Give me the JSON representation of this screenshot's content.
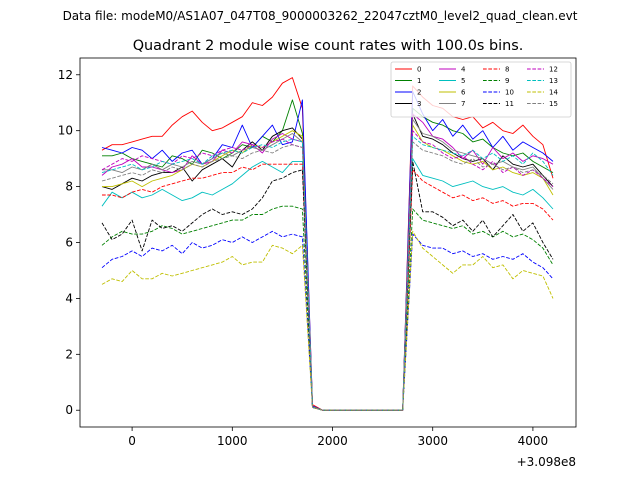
{
  "figure": {
    "suptitle": "Data file: modeM0/AS1A07_047T08_9000003262_22047cztM0_level2_quad_clean.evt"
  },
  "chart_data": {
    "type": "line",
    "title": "Quadrant 2 module wise count rates with 100.0s bins.",
    "xlabel": "",
    "ylabel": "",
    "x_offset_label": "+3.098e8",
    "xlim": [
      -520,
      4430
    ],
    "ylim": [
      -0.6,
      12.6
    ],
    "xticks": [
      0,
      1000,
      2000,
      3000,
      4000
    ],
    "yticks": [
      0,
      2,
      4,
      6,
      8,
      10,
      12
    ],
    "grid": false,
    "legend": {
      "placement": "top-right",
      "columns": 4
    },
    "x": [
      -300,
      -200,
      -100,
      0,
      100,
      200,
      300,
      400,
      500,
      600,
      700,
      800,
      900,
      1000,
      1100,
      1200,
      1300,
      1400,
      1500,
      1600,
      1700,
      1800,
      1900,
      2000,
      2100,
      2200,
      2300,
      2400,
      2500,
      2600,
      2700,
      2800,
      2900,
      3000,
      3100,
      3200,
      3300,
      3400,
      3500,
      3600,
      3700,
      3800,
      3900,
      4000,
      4100,
      4200
    ],
    "series": [
      {
        "name": "0",
        "color": "#ff0000",
        "dash": "solid",
        "values": [
          9.3,
          9.5,
          9.5,
          9.6,
          9.7,
          9.8,
          9.8,
          10.2,
          10.5,
          10.7,
          10.3,
          10.0,
          10.1,
          10.3,
          10.5,
          11.0,
          10.9,
          11.2,
          11.7,
          11.9,
          10.8,
          0.2,
          0.0,
          0.0,
          0.0,
          0.0,
          0.0,
          0.0,
          0.0,
          0.0,
          0.0,
          11.6,
          11.2,
          10.9,
          10.8,
          10.5,
          10.4,
          10.5,
          10.1,
          10.3,
          10.0,
          9.9,
          10.2,
          9.8,
          9.5,
          8.3
        ]
      },
      {
        "name": "1",
        "color": "#008000",
        "dash": "solid",
        "values": [
          9.1,
          9.1,
          9.2,
          9.0,
          8.9,
          8.8,
          8.7,
          9.1,
          9.0,
          8.8,
          9.3,
          9.2,
          9.0,
          9.2,
          9.5,
          9.4,
          9.8,
          9.6,
          10.0,
          11.1,
          9.9,
          0.15,
          0.0,
          0.0,
          0.0,
          0.0,
          0.0,
          0.0,
          0.0,
          0.0,
          0.0,
          10.8,
          10.5,
          10.3,
          10.2,
          10.0,
          9.9,
          9.6,
          9.7,
          9.4,
          9.2,
          9.1,
          9.2,
          8.9,
          8.7,
          8.5
        ]
      },
      {
        "name": "2",
        "color": "#0000ff",
        "dash": "solid",
        "values": [
          9.4,
          9.3,
          9.2,
          9.4,
          9.3,
          9.0,
          9.3,
          8.9,
          9.2,
          9.3,
          8.8,
          9.0,
          9.5,
          9.4,
          10.2,
          9.4,
          9.8,
          10.2,
          9.5,
          9.6,
          11.1,
          0.15,
          0.0,
          0.0,
          0.0,
          0.0,
          0.0,
          0.0,
          0.0,
          0.0,
          0.0,
          11.4,
          10.6,
          10.0,
          10.4,
          9.8,
          10.2,
          9.7,
          10.0,
          9.4,
          9.8,
          9.3,
          9.6,
          9.4,
          9.2,
          8.9
        ]
      },
      {
        "name": "3",
        "color": "#000000",
        "dash": "solid",
        "values": [
          8.0,
          7.9,
          8.1,
          8.3,
          8.2,
          8.4,
          8.5,
          8.5,
          8.7,
          8.2,
          8.6,
          8.8,
          9.0,
          8.7,
          9.3,
          9.6,
          9.3,
          9.8,
          10.0,
          10.1,
          9.7,
          0.12,
          0.0,
          0.0,
          0.0,
          0.0,
          0.0,
          0.0,
          0.0,
          0.0,
          0.0,
          10.6,
          9.8,
          9.7,
          9.5,
          9.2,
          9.0,
          8.9,
          9.0,
          8.6,
          9.1,
          8.8,
          8.7,
          8.8,
          8.4,
          8.0
        ]
      },
      {
        "name": "4",
        "color": "#bf00bf",
        "dash": "solid",
        "values": [
          8.4,
          8.7,
          8.8,
          9.0,
          8.7,
          8.7,
          8.6,
          8.5,
          8.6,
          9.1,
          8.8,
          8.9,
          9.3,
          9.2,
          9.6,
          9.5,
          9.2,
          9.7,
          9.9,
          9.7,
          9.6,
          0.12,
          0.0,
          0.0,
          0.0,
          0.0,
          0.0,
          0.0,
          0.0,
          0.0,
          0.0,
          10.6,
          10.3,
          9.8,
          9.7,
          9.4,
          9.0,
          9.3,
          8.8,
          9.4,
          9.0,
          9.2,
          8.9,
          9.1,
          9.0,
          8.8
        ]
      },
      {
        "name": "5",
        "color": "#00bfbf",
        "dash": "solid",
        "values": [
          7.3,
          7.8,
          7.6,
          7.8,
          7.6,
          7.7,
          7.9,
          7.7,
          7.5,
          7.6,
          7.8,
          7.7,
          7.9,
          8.1,
          8.4,
          8.7,
          8.9,
          8.7,
          8.5,
          8.9,
          8.9,
          0.12,
          0.0,
          0.0,
          0.0,
          0.0,
          0.0,
          0.0,
          0.0,
          0.0,
          0.0,
          9.0,
          8.4,
          8.3,
          8.2,
          8.0,
          8.1,
          8.2,
          8.0,
          7.9,
          8.0,
          7.8,
          7.7,
          7.9,
          7.6,
          7.2
        ]
      },
      {
        "name": "6",
        "color": "#bfbf00",
        "dash": "solid",
        "values": [
          8.0,
          8.0,
          8.1,
          8.2,
          8.0,
          8.2,
          8.3,
          8.4,
          8.6,
          8.8,
          8.7,
          8.9,
          9.1,
          9.3,
          9.2,
          9.5,
          9.4,
          9.6,
          9.8,
          10.0,
          9.8,
          0.12,
          0.0,
          0.0,
          0.0,
          0.0,
          0.0,
          0.0,
          0.0,
          0.0,
          0.0,
          10.2,
          9.6,
          9.4,
          9.3,
          9.1,
          8.9,
          8.8,
          8.9,
          8.6,
          8.7,
          8.5,
          8.4,
          8.5,
          8.3,
          7.7
        ]
      },
      {
        "name": "7",
        "color": "#808080",
        "dash": "solid",
        "values": [
          8.6,
          8.6,
          8.5,
          8.7,
          8.6,
          8.8,
          8.6,
          8.8,
          8.7,
          8.9,
          8.8,
          9.0,
          9.2,
          9.1,
          9.3,
          9.4,
          9.3,
          9.5,
          9.7,
          9.9,
          9.6,
          0.12,
          0.0,
          0.0,
          0.0,
          0.0,
          0.0,
          0.0,
          0.0,
          0.0,
          0.0,
          10.4,
          9.9,
          9.8,
          9.6,
          9.3,
          9.2,
          9.1,
          9.0,
          8.8,
          8.9,
          8.7,
          8.6,
          8.7,
          8.3,
          7.9
        ]
      },
      {
        "name": "8",
        "color": "#ff0000",
        "dash": "dashed",
        "values": [
          7.7,
          7.7,
          7.6,
          7.8,
          7.9,
          7.8,
          8.0,
          8.1,
          8.2,
          8.3,
          8.3,
          8.4,
          8.5,
          8.5,
          8.7,
          8.6,
          8.8,
          8.8,
          8.8,
          8.8,
          8.8,
          0.12,
          0.0,
          0.0,
          0.0,
          0.0,
          0.0,
          0.0,
          0.0,
          0.0,
          0.0,
          8.6,
          8.2,
          8.0,
          7.8,
          7.6,
          7.7,
          7.5,
          7.6,
          7.4,
          7.5,
          7.3,
          7.4,
          7.4,
          7.2,
          6.8
        ]
      },
      {
        "name": "9",
        "color": "#008000",
        "dash": "dashed",
        "values": [
          5.9,
          6.2,
          6.4,
          6.3,
          6.3,
          6.4,
          6.6,
          6.5,
          6.3,
          6.4,
          6.5,
          6.6,
          6.7,
          6.8,
          6.8,
          7.0,
          7.0,
          7.2,
          7.3,
          7.3,
          7.2,
          0.1,
          0.0,
          0.0,
          0.0,
          0.0,
          0.0,
          0.0,
          0.0,
          0.0,
          0.0,
          7.2,
          6.8,
          6.7,
          6.6,
          6.5,
          6.6,
          6.3,
          6.4,
          6.2,
          6.4,
          6.2,
          6.3,
          6.1,
          5.8,
          5.2
        ]
      },
      {
        "name": "10",
        "color": "#0000ff",
        "dash": "dashed",
        "values": [
          5.1,
          5.4,
          5.5,
          5.7,
          5.5,
          5.8,
          5.7,
          5.9,
          5.6,
          6.0,
          5.8,
          5.9,
          6.1,
          6.0,
          6.2,
          6.0,
          6.2,
          6.4,
          6.2,
          6.3,
          6.2,
          0.1,
          0.0,
          0.0,
          0.0,
          0.0,
          0.0,
          0.0,
          0.0,
          0.0,
          0.0,
          6.3,
          5.9,
          5.8,
          5.8,
          5.6,
          5.7,
          5.5,
          5.6,
          5.4,
          5.5,
          5.4,
          5.6,
          5.3,
          5.1,
          4.7
        ]
      },
      {
        "name": "11",
        "color": "#000000",
        "dash": "dashed",
        "values": [
          6.7,
          6.1,
          6.3,
          6.8,
          5.7,
          6.8,
          6.5,
          6.6,
          6.4,
          6.7,
          7.0,
          7.2,
          7.0,
          7.1,
          7.0,
          7.2,
          7.6,
          8.2,
          8.3,
          8.5,
          8.6,
          0.1,
          0.0,
          0.0,
          0.0,
          0.0,
          0.0,
          0.0,
          0.0,
          0.0,
          0.0,
          8.9,
          7.1,
          7.1,
          6.9,
          6.6,
          6.8,
          6.4,
          6.8,
          6.2,
          6.6,
          7.0,
          6.4,
          6.7,
          6.0,
          5.4
        ]
      },
      {
        "name": "12",
        "color": "#bf00bf",
        "dash": "dashed",
        "values": [
          8.6,
          8.8,
          9.0,
          8.9,
          9.1,
          9.0,
          8.9,
          8.8,
          9.1,
          9.0,
          9.2,
          9.1,
          9.3,
          9.4,
          9.3,
          9.5,
          9.4,
          9.6,
          9.7,
          9.5,
          9.4,
          0.12,
          0.0,
          0.0,
          0.0,
          0.0,
          0.0,
          0.0,
          0.0,
          0.0,
          0.0,
          10.0,
          9.6,
          9.5,
          9.2,
          9.0,
          9.1,
          8.8,
          8.6,
          8.9,
          8.5,
          8.7,
          8.4,
          8.6,
          8.3,
          8.0
        ]
      },
      {
        "name": "13",
        "color": "#00bfbf",
        "dash": "dashed",
        "values": [
          8.5,
          8.6,
          8.7,
          8.8,
          8.6,
          8.7,
          8.9,
          8.8,
          8.9,
          9.0,
          8.8,
          9.1,
          9.2,
          9.3,
          9.2,
          9.4,
          9.5,
          9.4,
          9.6,
          9.7,
          9.6,
          0.12,
          0.0,
          0.0,
          0.0,
          0.0,
          0.0,
          0.0,
          0.0,
          0.0,
          0.0,
          9.8,
          9.5,
          9.4,
          9.3,
          9.2,
          9.1,
          9.3,
          9.0,
          9.2,
          8.9,
          9.1,
          8.8,
          9.2,
          8.9,
          8.4
        ]
      },
      {
        "name": "14",
        "color": "#bfbf00",
        "dash": "dashed",
        "values": [
          4.5,
          4.7,
          4.6,
          5.0,
          4.7,
          4.7,
          4.9,
          4.8,
          4.9,
          5.0,
          5.1,
          5.2,
          5.3,
          5.5,
          5.2,
          5.3,
          5.3,
          5.9,
          5.8,
          5.6,
          5.9,
          0.1,
          0.0,
          0.0,
          0.0,
          0.0,
          0.0,
          0.0,
          0.0,
          0.0,
          0.0,
          6.4,
          5.8,
          5.5,
          5.2,
          4.9,
          5.2,
          5.2,
          5.5,
          5.1,
          5.2,
          4.7,
          5.0,
          4.9,
          4.8,
          4.0
        ]
      },
      {
        "name": "15",
        "color": "#808080",
        "dash": "dashed",
        "values": [
          8.2,
          8.3,
          8.4,
          8.5,
          8.4,
          8.6,
          8.5,
          8.7,
          8.6,
          8.8,
          8.7,
          8.9,
          9.0,
          9.1,
          9.0,
          9.2,
          9.3,
          9.2,
          9.4,
          9.5,
          9.4,
          0.12,
          0.0,
          0.0,
          0.0,
          0.0,
          0.0,
          0.0,
          0.0,
          0.0,
          0.0,
          9.6,
          9.3,
          9.2,
          9.1,
          8.9,
          8.8,
          9.0,
          8.7,
          8.8,
          8.6,
          8.7,
          8.5,
          8.6,
          8.4,
          8.1
        ]
      }
    ]
  }
}
